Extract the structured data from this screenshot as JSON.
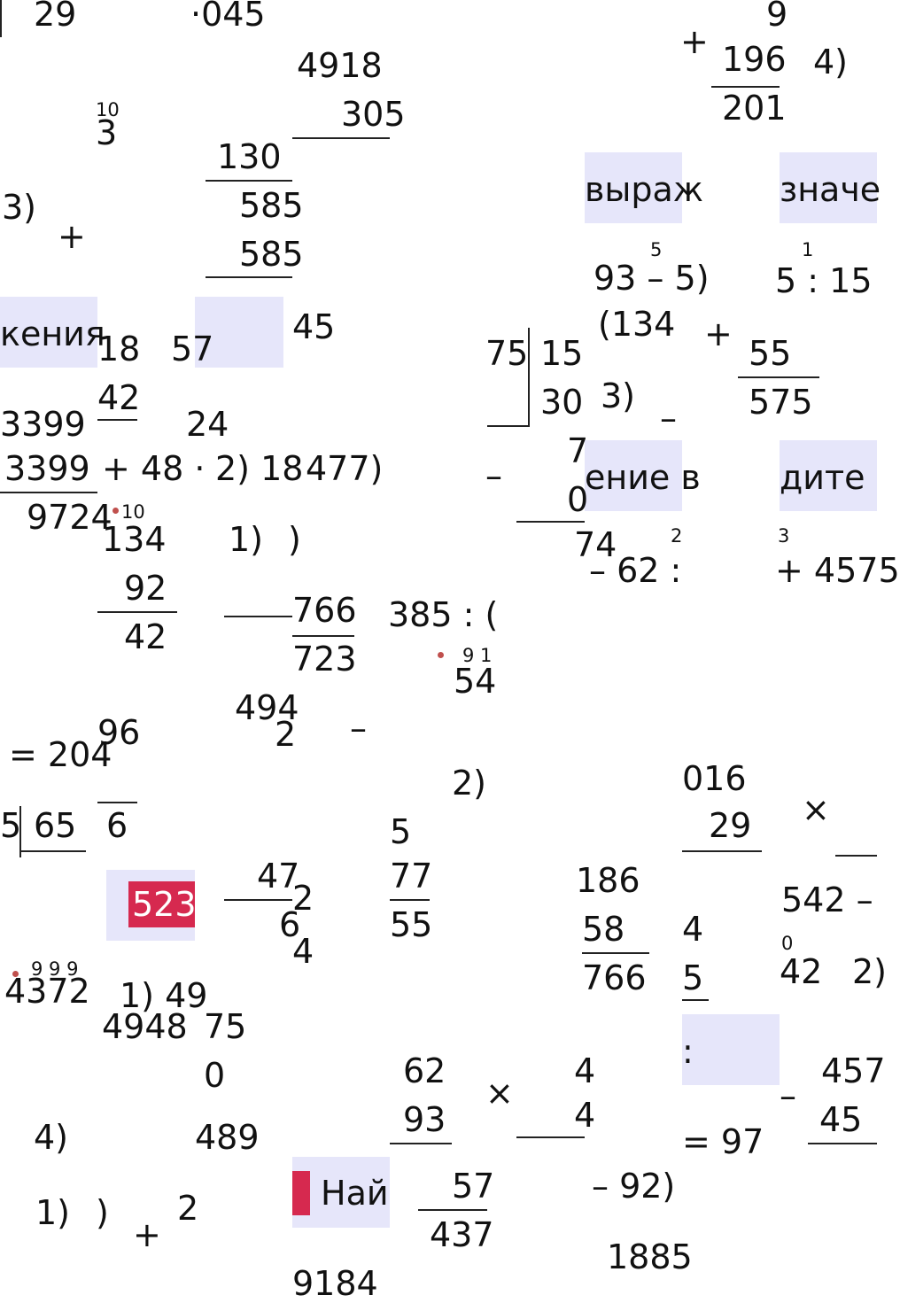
{
  "colors": {
    "highlight": "#e6e6fa",
    "badge": "#d6294f",
    "dot": "#c0504d"
  },
  "badge_text": "523",
  "fragments": [
    "29",
    "·045",
    "4918",
    "305",
    "196",
    "201",
    "4)",
    "+",
    "9",
    "10",
    "3",
    "130",
    "585",
    "585",
    "3)",
    "+",
    "выраж",
    "значе",
    "кения",
    "18",
    "57",
    "45",
    "5",
    "93 – 5)",
    "1",
    "5 : 15",
    "(134",
    "+",
    "55",
    "575",
    "75",
    "15",
    "30",
    "3)",
    "–",
    "42",
    "3399",
    "24",
    "3399",
    "+ 48 ·",
    "2) 18",
    "477)",
    "9724",
    "10",
    "–",
    "7",
    "0",
    "ение в",
    "дите",
    "134",
    "1)",
    ")",
    "92",
    "42",
    "74",
    "2",
    "3",
    "– 62 :",
    "+ 4575",
    "766",
    "723",
    "385 : (",
    "9 1",
    "54",
    "494",
    "2",
    "–",
    "96",
    "= 204",
    "2)",
    "016",
    "29",
    "×",
    "65",
    "5",
    "6",
    "5",
    "47",
    "2",
    "6",
    "4",
    "77",
    "55",
    "186",
    "58",
    "766",
    "4",
    "5",
    "542 –",
    "0",
    "42",
    "2)",
    "9 9 9",
    "4372",
    "1) 49",
    "4948",
    "75",
    "0",
    ":",
    "457",
    "45",
    "–",
    "62",
    "93",
    "×",
    "4",
    "4",
    "= 97",
    "4)",
    "489",
    "Най",
    "57",
    "437",
    "– 92)",
    "1885",
    "1)",
    ")",
    "+",
    "2",
    "9184"
  ]
}
